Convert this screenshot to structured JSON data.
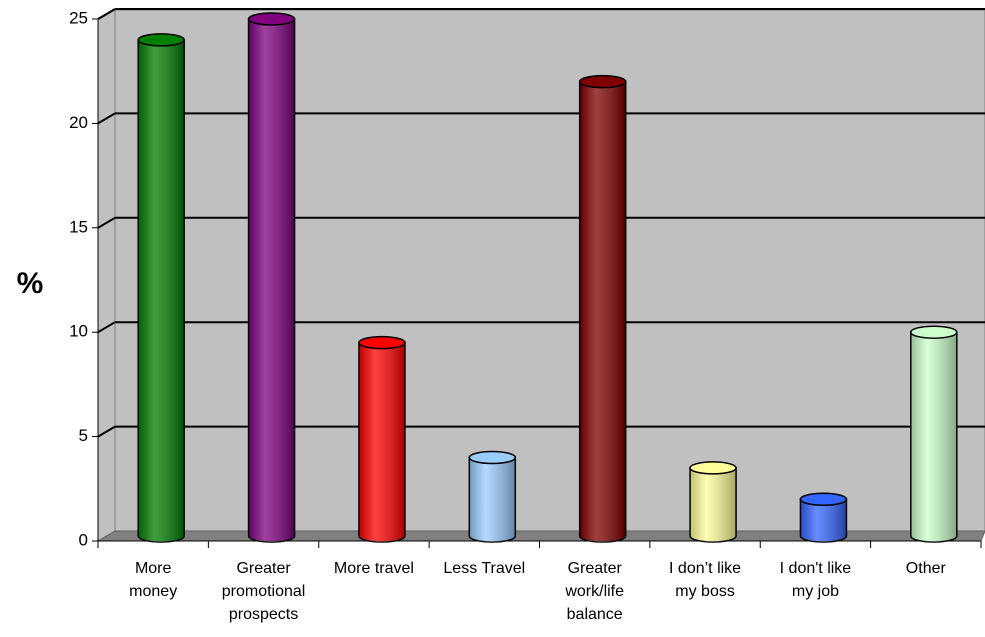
{
  "chart_data": {
    "type": "bar",
    "y_label": "%",
    "categories": [
      "More\nmoney",
      "Greater\npromotional\nprospects",
      "More travel",
      "Less Travel",
      "Greater\nwork/life\nbalance",
      "I don’t like\nmy boss",
      "I don't like\nmy job",
      "Other"
    ],
    "values": [
      24,
      25,
      9.5,
      4,
      22,
      3.5,
      2,
      10
    ],
    "colors": [
      "#008000",
      "#800080",
      "#ff0000",
      "#99ccff",
      "#800000",
      "#ffff99",
      "#3366ff",
      "#ccffcc"
    ],
    "ylim": [
      0,
      25
    ],
    "yticks": [
      0,
      5,
      10,
      15,
      20,
      25
    ],
    "grid": true
  }
}
